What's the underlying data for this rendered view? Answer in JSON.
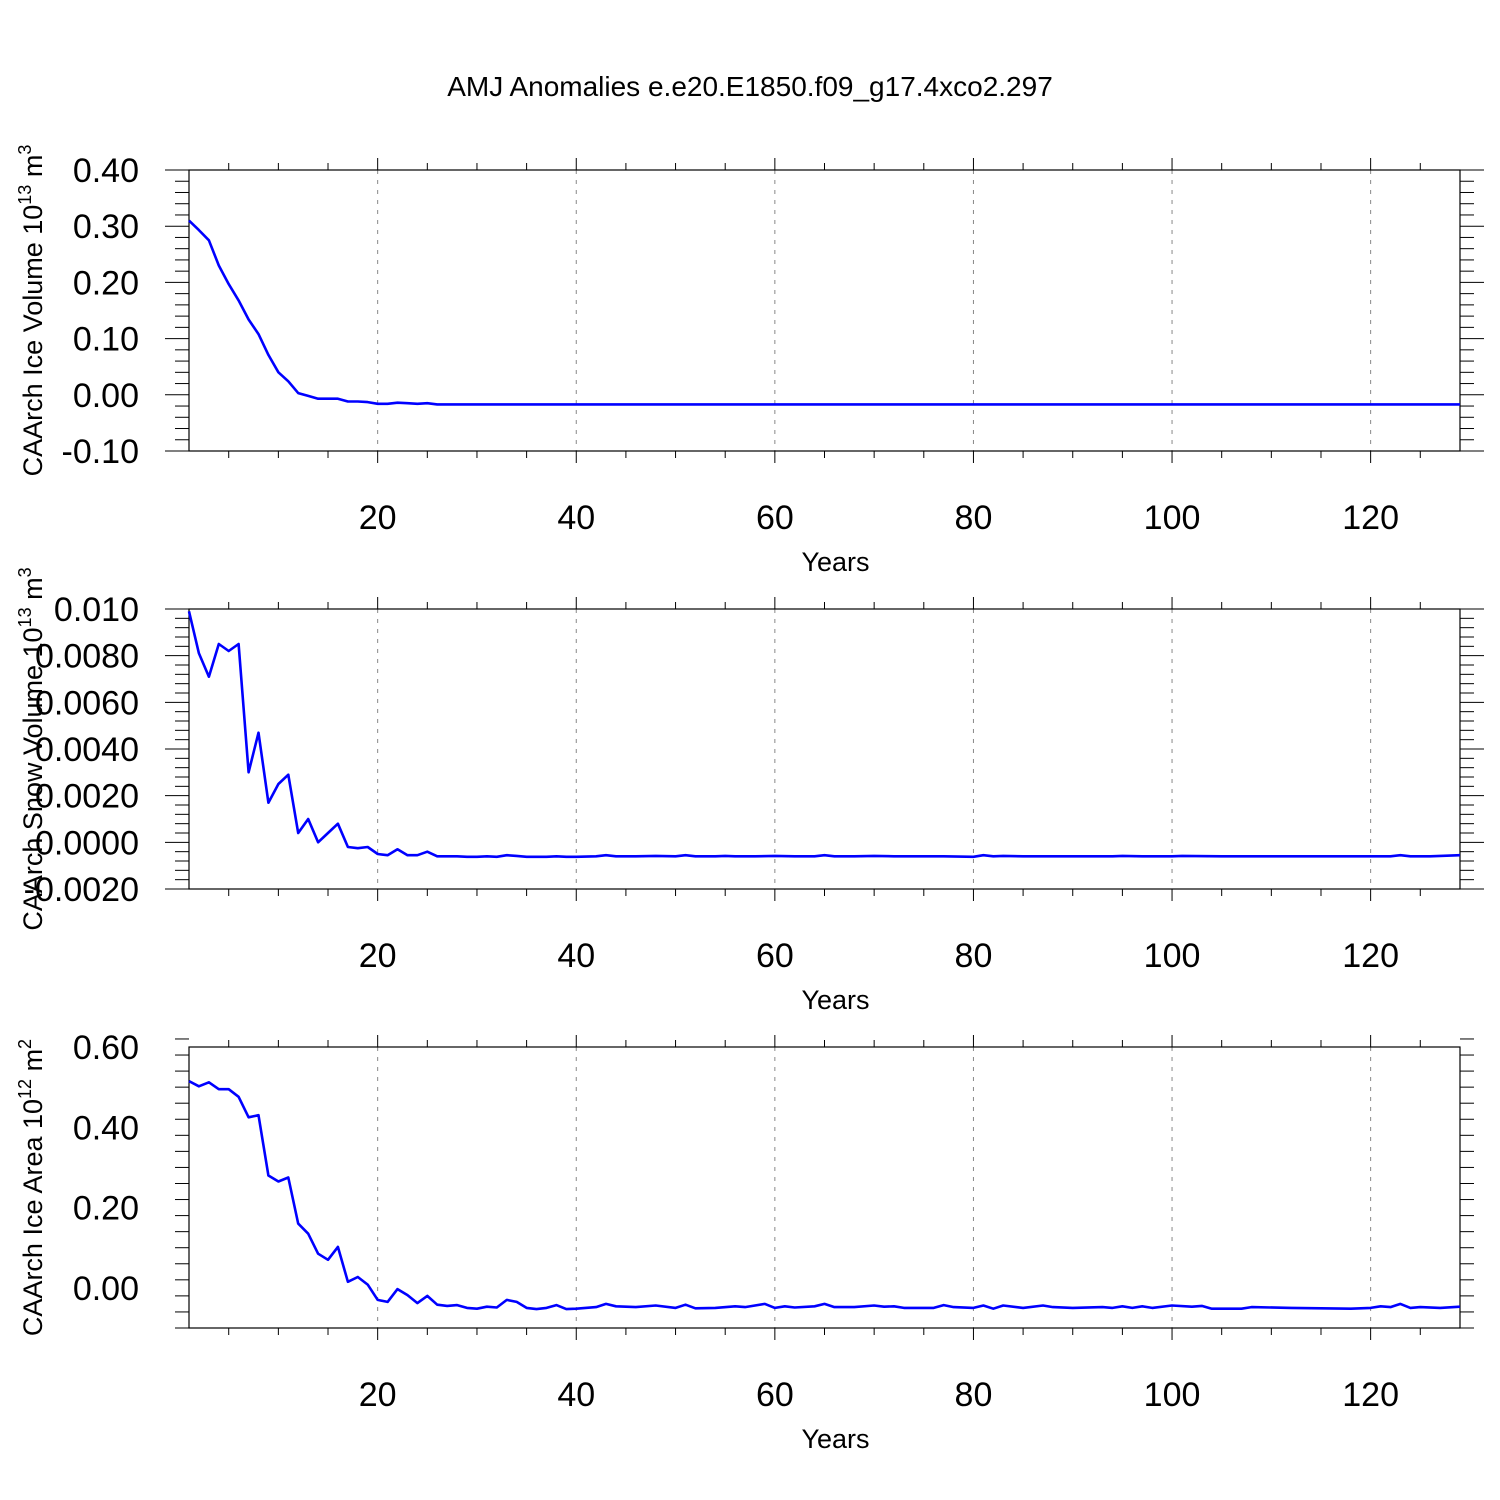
{
  "figure": {
    "title": "AMJ Anomalies e.e20.E1850.f09_g17.4xco2.297"
  },
  "colors": {
    "series": "#0000ff",
    "grid": "#888888",
    "axis": "#000000"
  },
  "chart_data": [
    {
      "type": "line",
      "xlabel": "Years",
      "ylabel": "CAArch Ice Volume 10",
      "ylabel_sup": "13",
      "ylabel_unit": " m",
      "ylabel_unit_sup": "3",
      "xlim": [
        1,
        129
      ],
      "ylim": [
        -0.1,
        0.4
      ],
      "xticks": [
        20,
        40,
        60,
        80,
        100,
        120
      ],
      "xtick_labels": [
        "20",
        "40",
        "60",
        "80",
        "100",
        "120"
      ],
      "yticks": [
        -0.1,
        0.0,
        0.1,
        0.2,
        0.3,
        0.4
      ],
      "ytick_labels": [
        "-0.10",
        "0.00",
        "0.10",
        "0.20",
        "0.30",
        "0.40"
      ],
      "grid_x": true,
      "series": [
        {
          "color": "#0000ff",
          "x": [
            1,
            2,
            3,
            4,
            5,
            6,
            7,
            8,
            9,
            10,
            11,
            12,
            13,
            14,
            15,
            16,
            17,
            18,
            19,
            20,
            21,
            22,
            23,
            24,
            25,
            26,
            27,
            28,
            29,
            30,
            35,
            40,
            50,
            60,
            70,
            80,
            90,
            100,
            110,
            120,
            129
          ],
          "y": [
            0.31,
            0.293,
            0.275,
            0.23,
            0.197,
            0.168,
            0.134,
            0.108,
            0.071,
            0.04,
            0.024,
            0.003,
            -0.002,
            -0.007,
            -0.007,
            -0.007,
            -0.012,
            -0.012,
            -0.013,
            -0.016,
            -0.016,
            -0.014,
            -0.015,
            -0.016,
            -0.015,
            -0.017,
            -0.017,
            -0.017,
            -0.017,
            -0.017,
            -0.017,
            -0.017,
            -0.017,
            -0.017,
            -0.017,
            -0.017,
            -0.017,
            -0.017,
            -0.017,
            -0.017,
            -0.017
          ]
        }
      ]
    },
    {
      "type": "line",
      "xlabel": "Years",
      "ylabel": "CAArch Snow Volume 10",
      "ylabel_sup": "13",
      "ylabel_unit": " m",
      "ylabel_unit_sup": "3",
      "xlim": [
        1,
        129
      ],
      "ylim": [
        -0.002,
        0.01
      ],
      "xticks": [
        20,
        40,
        60,
        80,
        100,
        120
      ],
      "xtick_labels": [
        "20",
        "40",
        "60",
        "80",
        "100",
        "120"
      ],
      "yticks": [
        -0.002,
        0.0,
        0.002,
        0.004,
        0.006,
        0.008,
        0.01
      ],
      "ytick_labels": [
        "-0.0020",
        "0.0000",
        "0.0020",
        "0.0040",
        "0.0060",
        "0.0080",
        "0.010"
      ],
      "grid_x": true,
      "series": [
        {
          "color": "#0000ff",
          "x": [
            1,
            2,
            3,
            4,
            5,
            6,
            7,
            8,
            9,
            10,
            11,
            12,
            13,
            14,
            15,
            16,
            17,
            18,
            19,
            20,
            21,
            22,
            23,
            24,
            25,
            26,
            27,
            28,
            29,
            30,
            31,
            32,
            33,
            34,
            35,
            36,
            37,
            38,
            39,
            40,
            42,
            43,
            44,
            46,
            48,
            50,
            51,
            52,
            54,
            55,
            56,
            58,
            60,
            62,
            64,
            65,
            66,
            68,
            70,
            72,
            75,
            77,
            80,
            81,
            82,
            83,
            85,
            87,
            90,
            92,
            94,
            95,
            97,
            100,
            101,
            105,
            108,
            110,
            115,
            120,
            122,
            123,
            124,
            126,
            129
          ],
          "y": [
            0.0099,
            0.0081,
            0.0071,
            0.0085,
            0.0082,
            0.0085,
            0.003,
            0.0047,
            0.0017,
            0.0025,
            0.0029,
            0.0004,
            0.001,
            0.0,
            0.0004,
            0.0008,
            -0.0002,
            -0.00025,
            -0.0002,
            -0.0005,
            -0.00055,
            -0.0003,
            -0.00055,
            -0.00055,
            -0.0004,
            -0.0006,
            -0.0006,
            -0.0006,
            -0.00062,
            -0.00062,
            -0.0006,
            -0.00062,
            -0.00055,
            -0.00058,
            -0.00062,
            -0.00062,
            -0.00062,
            -0.0006,
            -0.00062,
            -0.00062,
            -0.0006,
            -0.00055,
            -0.0006,
            -0.0006,
            -0.00058,
            -0.0006,
            -0.00055,
            -0.0006,
            -0.0006,
            -0.00058,
            -0.0006,
            -0.0006,
            -0.00058,
            -0.0006,
            -0.0006,
            -0.00055,
            -0.0006,
            -0.0006,
            -0.00058,
            -0.0006,
            -0.0006,
            -0.0006,
            -0.00062,
            -0.00055,
            -0.0006,
            -0.00058,
            -0.0006,
            -0.0006,
            -0.0006,
            -0.0006,
            -0.0006,
            -0.00058,
            -0.0006,
            -0.0006,
            -0.00058,
            -0.0006,
            -0.0006,
            -0.0006,
            -0.0006,
            -0.0006,
            -0.0006,
            -0.00055,
            -0.0006,
            -0.0006,
            -0.00055
          ]
        }
      ]
    },
    {
      "type": "line",
      "xlabel": "Years",
      "ylabel": "CAArch Ice Area 10",
      "ylabel_sup": "12",
      "ylabel_unit": " m",
      "ylabel_unit_sup": "2",
      "xlim": [
        1,
        129
      ],
      "ylim": [
        -0.1,
        0.6
      ],
      "xticks": [
        20,
        40,
        60,
        80,
        100,
        120
      ],
      "xtick_labels": [
        "20",
        "40",
        "60",
        "80",
        "100",
        "120"
      ],
      "yticks": [
        0.0,
        0.2,
        0.4,
        0.6
      ],
      "ytick_labels": [
        "0.00",
        "0.20",
        "0.40",
        "0.60"
      ],
      "grid_x": true,
      "series": [
        {
          "color": "#0000ff",
          "x": [
            1,
            2,
            3,
            4,
            5,
            6,
            7,
            8,
            9,
            10,
            11,
            12,
            13,
            14,
            15,
            16,
            17,
            18,
            19,
            20,
            21,
            22,
            23,
            24,
            25,
            26,
            27,
            28,
            29,
            30,
            31,
            32,
            33,
            34,
            35,
            36,
            37,
            38,
            39,
            40,
            42,
            43,
            44,
            46,
            48,
            50,
            51,
            52,
            54,
            56,
            57,
            59,
            60,
            61,
            62,
            64,
            65,
            66,
            68,
            70,
            71,
            72,
            73,
            76,
            77,
            78,
            80,
            81,
            82,
            83,
            85,
            87,
            88,
            90,
            93,
            94,
            95,
            96,
            97,
            98,
            100,
            102,
            103,
            104,
            107,
            108,
            112,
            115,
            118,
            120,
            121,
            122,
            123,
            124,
            125,
            127,
            129
          ],
          "y": [
            0.515,
            0.502,
            0.512,
            0.495,
            0.495,
            0.476,
            0.425,
            0.43,
            0.28,
            0.265,
            0.275,
            0.16,
            0.135,
            0.085,
            0.07,
            0.102,
            0.015,
            0.027,
            0.008,
            -0.03,
            -0.035,
            -0.003,
            -0.018,
            -0.038,
            -0.02,
            -0.042,
            -0.045,
            -0.043,
            -0.05,
            -0.052,
            -0.047,
            -0.049,
            -0.03,
            -0.035,
            -0.05,
            -0.053,
            -0.05,
            -0.043,
            -0.053,
            -0.052,
            -0.048,
            -0.04,
            -0.046,
            -0.048,
            -0.044,
            -0.05,
            -0.042,
            -0.051,
            -0.05,
            -0.046,
            -0.048,
            -0.04,
            -0.05,
            -0.046,
            -0.049,
            -0.046,
            -0.04,
            -0.048,
            -0.048,
            -0.044,
            -0.047,
            -0.046,
            -0.05,
            -0.05,
            -0.043,
            -0.048,
            -0.05,
            -0.044,
            -0.052,
            -0.044,
            -0.05,
            -0.044,
            -0.048,
            -0.05,
            -0.048,
            -0.05,
            -0.046,
            -0.05,
            -0.046,
            -0.05,
            -0.044,
            -0.047,
            -0.045,
            -0.052,
            -0.052,
            -0.048,
            -0.05,
            -0.051,
            -0.052,
            -0.05,
            -0.046,
            -0.048,
            -0.04,
            -0.05,
            -0.048,
            -0.05,
            -0.047
          ]
        }
      ]
    }
  ]
}
